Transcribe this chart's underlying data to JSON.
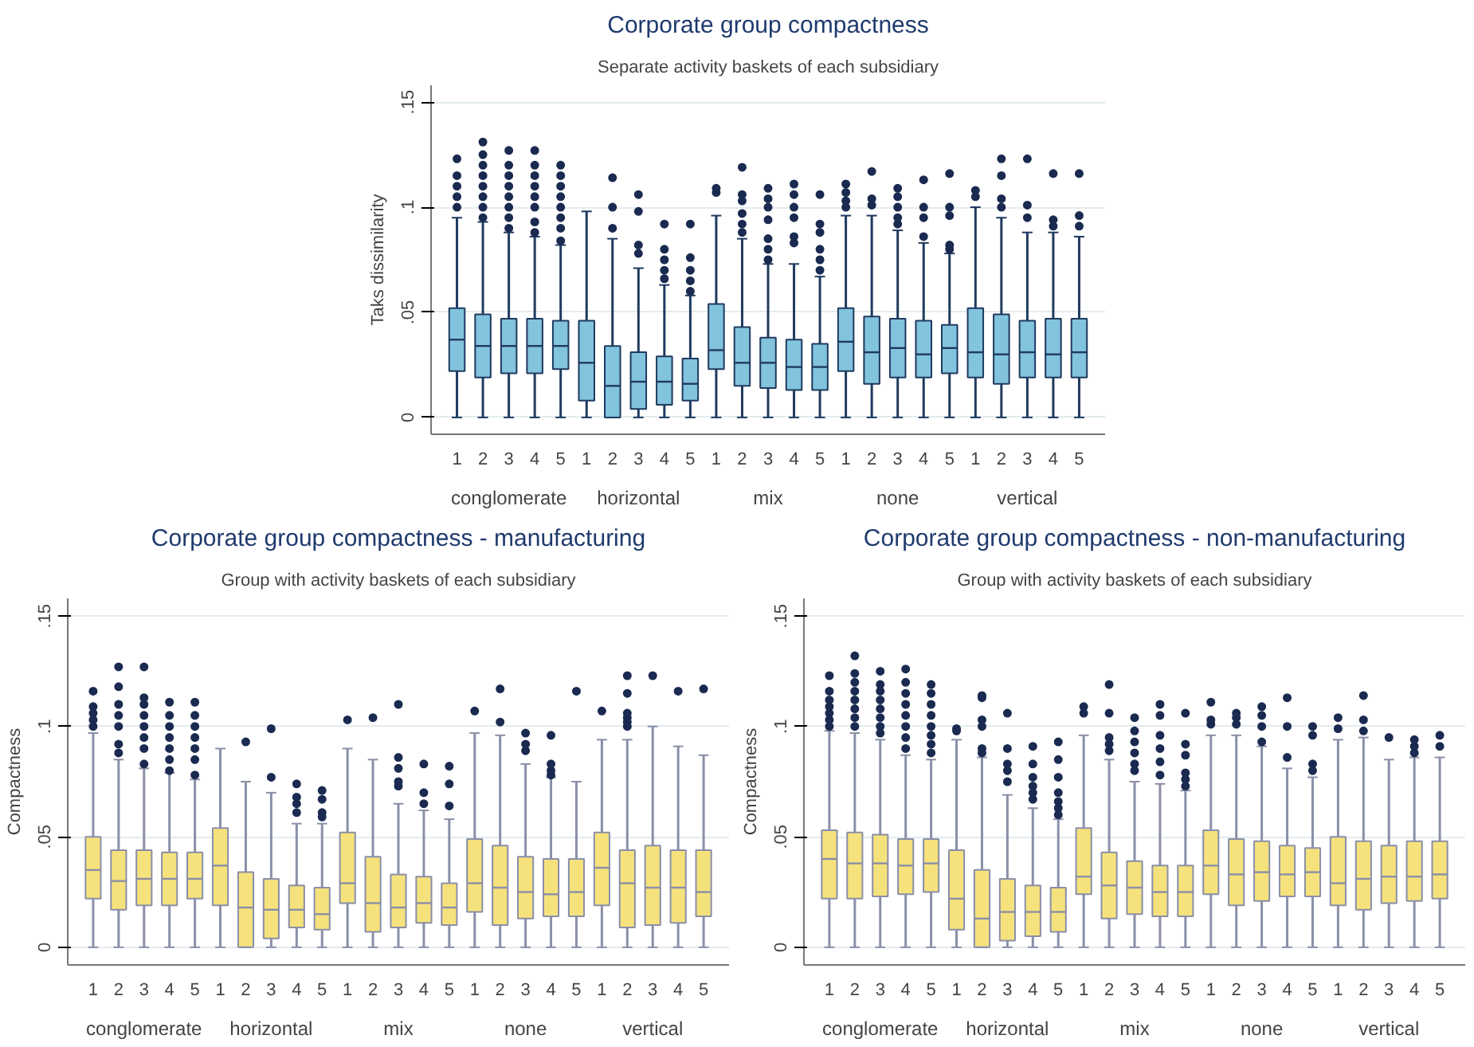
{
  "chart_data": [
    {
      "type": "box",
      "title": "Corporate group compactness",
      "subtitle": "Separate activity baskets of each subsidiary",
      "ylabel": "Taks dissimilarity",
      "categories": [
        "1",
        "2",
        "3",
        "4",
        "5",
        "1",
        "2",
        "3",
        "4",
        "5",
        "1",
        "2",
        "3",
        "4",
        "5",
        "1",
        "2",
        "3",
        "4",
        "5",
        "1",
        "2",
        "3",
        "4",
        "5"
      ],
      "annotations": [
        "conglomerate",
        "horizontal",
        "mix",
        "none",
        "vertical"
      ],
      "ylim": [
        -0.008,
        0.158
      ],
      "yticks": [
        {
          "value": 0,
          "label": "0"
        },
        {
          "value": 0.05,
          "label": ".05"
        },
        {
          "value": 0.1,
          "label": ".1"
        },
        {
          "value": 0.15,
          "label": ".15"
        }
      ],
      "grid": "y",
      "series": [
        {
          "color": "#82c3dd",
          "boxes": [
            {
              "low": 0,
              "q1": 0.022,
              "median": 0.037,
              "q3": 0.052,
              "high": 0.095,
              "outliers": [
                0.1,
                0.105,
                0.11,
                0.115,
                0.123
              ]
            },
            {
              "low": 0,
              "q1": 0.019,
              "median": 0.034,
              "q3": 0.049,
              "high": 0.093,
              "outliers": [
                0.095,
                0.1,
                0.105,
                0.11,
                0.115,
                0.12,
                0.125,
                0.131
              ]
            },
            {
              "low": 0,
              "q1": 0.021,
              "median": 0.034,
              "q3": 0.047,
              "high": 0.088,
              "outliers": [
                0.09,
                0.095,
                0.1,
                0.105,
                0.11,
                0.115,
                0.12,
                0.127
              ]
            },
            {
              "low": 0,
              "q1": 0.021,
              "median": 0.034,
              "q3": 0.047,
              "high": 0.086,
              "outliers": [
                0.088,
                0.093,
                0.1,
                0.105,
                0.11,
                0.115,
                0.12,
                0.127
              ]
            },
            {
              "low": 0,
              "q1": 0.023,
              "median": 0.034,
              "q3": 0.046,
              "high": 0.082,
              "outliers": [
                0.084,
                0.09,
                0.095,
                0.1,
                0.105,
                0.11,
                0.115,
                0.12
              ]
            },
            {
              "low": 0,
              "q1": 0.008,
              "median": 0.026,
              "q3": 0.046,
              "high": 0.098
            },
            {
              "low": 0,
              "q1": 0,
              "median": 0.015,
              "q3": 0.034,
              "high": 0.085,
              "outliers": [
                0.09,
                0.1,
                0.114
              ]
            },
            {
              "low": 0,
              "q1": 0.004,
              "median": 0.017,
              "q3": 0.031,
              "high": 0.071,
              "outliers": [
                0.078,
                0.082,
                0.098,
                0.106
              ]
            },
            {
              "low": 0,
              "q1": 0.006,
              "median": 0.017,
              "q3": 0.029,
              "high": 0.063,
              "outliers": [
                0.066,
                0.07,
                0.075,
                0.08,
                0.092
              ]
            },
            {
              "low": 0,
              "q1": 0.008,
              "median": 0.016,
              "q3": 0.028,
              "high": 0.058,
              "outliers": [
                0.06,
                0.065,
                0.07,
                0.076,
                0.092
              ]
            },
            {
              "low": 0,
              "q1": 0.023,
              "median": 0.032,
              "q3": 0.054,
              "high": 0.096,
              "outliers": [
                0.107,
                0.109
              ]
            },
            {
              "low": 0,
              "q1": 0.015,
              "median": 0.026,
              "q3": 0.043,
              "high": 0.085,
              "outliers": [
                0.088,
                0.092,
                0.097,
                0.103,
                0.106,
                0.119
              ]
            },
            {
              "low": 0,
              "q1": 0.014,
              "median": 0.026,
              "q3": 0.038,
              "high": 0.073,
              "outliers": [
                0.075,
                0.08,
                0.085,
                0.094,
                0.1,
                0.104,
                0.109
              ]
            },
            {
              "low": 0,
              "q1": 0.013,
              "median": 0.024,
              "q3": 0.037,
              "high": 0.073,
              "outliers": [
                0.083,
                0.086,
                0.095,
                0.1,
                0.106,
                0.111
              ]
            },
            {
              "low": 0,
              "q1": 0.013,
              "median": 0.024,
              "q3": 0.035,
              "high": 0.067,
              "outliers": [
                0.07,
                0.075,
                0.08,
                0.088,
                0.092,
                0.106
              ]
            },
            {
              "low": 0,
              "q1": 0.022,
              "median": 0.036,
              "q3": 0.052,
              "high": 0.096,
              "outliers": [
                0.1,
                0.103,
                0.107,
                0.111
              ]
            },
            {
              "low": 0,
              "q1": 0.016,
              "median": 0.031,
              "q3": 0.048,
              "high": 0.096,
              "outliers": [
                0.101,
                0.104,
                0.117
              ]
            },
            {
              "low": 0,
              "q1": 0.019,
              "median": 0.033,
              "q3": 0.047,
              "high": 0.089,
              "outliers": [
                0.092,
                0.095,
                0.1,
                0.105,
                0.109
              ]
            },
            {
              "low": 0,
              "q1": 0.019,
              "median": 0.03,
              "q3": 0.046,
              "high": 0.083,
              "outliers": [
                0.086,
                0.095,
                0.1,
                0.113
              ]
            },
            {
              "low": 0,
              "q1": 0.021,
              "median": 0.033,
              "q3": 0.044,
              "high": 0.078,
              "outliers": [
                0.08,
                0.082,
                0.096,
                0.1,
                0.116
              ]
            },
            {
              "low": 0,
              "q1": 0.019,
              "median": 0.031,
              "q3": 0.052,
              "high": 0.1,
              "outliers": [
                0.105,
                0.108
              ]
            },
            {
              "low": 0,
              "q1": 0.016,
              "median": 0.03,
              "q3": 0.049,
              "high": 0.095,
              "outliers": [
                0.1,
                0.104,
                0.115,
                0.123
              ]
            },
            {
              "low": 0,
              "q1": 0.019,
              "median": 0.031,
              "q3": 0.046,
              "high": 0.088,
              "outliers": [
                0.095,
                0.101,
                0.123
              ]
            },
            {
              "low": 0,
              "q1": 0.019,
              "median": 0.03,
              "q3": 0.047,
              "high": 0.088,
              "outliers": [
                0.091,
                0.094,
                0.116
              ]
            },
            {
              "low": 0,
              "q1": 0.019,
              "median": 0.031,
              "q3": 0.047,
              "high": 0.086,
              "outliers": [
                0.091,
                0.096,
                0.116
              ]
            }
          ]
        }
      ]
    },
    {
      "type": "box",
      "title": "Corporate group compactness - manufacturing",
      "subtitle": "Group with activity baskets of each subsidiary",
      "ylabel": "Compactness",
      "categories": [
        "1",
        "2",
        "3",
        "4",
        "5",
        "1",
        "2",
        "3",
        "4",
        "5",
        "1",
        "2",
        "3",
        "4",
        "5",
        "1",
        "2",
        "3",
        "4",
        "5",
        "1",
        "2",
        "3",
        "4",
        "5"
      ],
      "annotations": [
        "conglomerate",
        "horizontal",
        "mix",
        "none",
        "vertical"
      ],
      "ylim": [
        -0.008,
        0.158
      ],
      "yticks": [
        {
          "value": 0,
          "label": "0"
        },
        {
          "value": 0.05,
          "label": ".05"
        },
        {
          "value": 0.1,
          "label": ".1"
        },
        {
          "value": 0.15,
          "label": ".15"
        }
      ],
      "grid": "y",
      "series": [
        {
          "color": "#f6e27c",
          "boxes": [
            {
              "low": 0,
              "q1": 0.022,
              "median": 0.035,
              "q3": 0.05,
              "high": 0.097,
              "outliers": [
                0.1,
                0.103,
                0.106,
                0.109,
                0.116
              ]
            },
            {
              "low": 0,
              "q1": 0.017,
              "median": 0.03,
              "q3": 0.044,
              "high": 0.085,
              "outliers": [
                0.088,
                0.092,
                0.1,
                0.105,
                0.11,
                0.118,
                0.127
              ]
            },
            {
              "low": 0,
              "q1": 0.019,
              "median": 0.031,
              "q3": 0.044,
              "high": 0.081,
              "outliers": [
                0.083,
                0.09,
                0.095,
                0.1,
                0.105,
                0.11,
                0.113,
                0.127
              ]
            },
            {
              "low": 0,
              "q1": 0.019,
              "median": 0.031,
              "q3": 0.043,
              "high": 0.079,
              "outliers": [
                0.08,
                0.085,
                0.09,
                0.095,
                0.1,
                0.105,
                0.111
              ]
            },
            {
              "low": 0,
              "q1": 0.022,
              "median": 0.031,
              "q3": 0.043,
              "high": 0.076,
              "outliers": [
                0.078,
                0.085,
                0.09,
                0.095,
                0.1,
                0.105,
                0.111
              ]
            },
            {
              "low": 0,
              "q1": 0.019,
              "median": 0.037,
              "q3": 0.054,
              "high": 0.09
            },
            {
              "low": 0,
              "q1": 0,
              "median": 0.018,
              "q3": 0.034,
              "high": 0.075,
              "outliers": [
                0.093
              ]
            },
            {
              "low": 0,
              "q1": 0.004,
              "median": 0.017,
              "q3": 0.031,
              "high": 0.07,
              "outliers": [
                0.077,
                0.099
              ]
            },
            {
              "low": 0,
              "q1": 0.009,
              "median": 0.017,
              "q3": 0.028,
              "high": 0.056,
              "outliers": [
                0.061,
                0.065,
                0.068,
                0.074
              ]
            },
            {
              "low": 0,
              "q1": 0.008,
              "median": 0.015,
              "q3": 0.027,
              "high": 0.056,
              "outliers": [
                0.059,
                0.061,
                0.067,
                0.071
              ]
            },
            {
              "low": 0,
              "q1": 0.02,
              "median": 0.029,
              "q3": 0.052,
              "high": 0.09,
              "outliers": [
                0.103
              ]
            },
            {
              "low": 0,
              "q1": 0.007,
              "median": 0.02,
              "q3": 0.041,
              "high": 0.085,
              "outliers": [
                0.104
              ]
            },
            {
              "low": 0,
              "q1": 0.009,
              "median": 0.018,
              "q3": 0.033,
              "high": 0.065,
              "outliers": [
                0.073,
                0.075,
                0.081,
                0.086,
                0.11
              ]
            },
            {
              "low": 0,
              "q1": 0.011,
              "median": 0.02,
              "q3": 0.032,
              "high": 0.062,
              "outliers": [
                0.065,
                0.07,
                0.083
              ]
            },
            {
              "low": 0,
              "q1": 0.01,
              "median": 0.018,
              "q3": 0.029,
              "high": 0.058,
              "outliers": [
                0.064,
                0.074,
                0.082
              ]
            },
            {
              "low": 0,
              "q1": 0.016,
              "median": 0.029,
              "q3": 0.049,
              "high": 0.097,
              "outliers": [
                0.107
              ]
            },
            {
              "low": 0,
              "q1": 0.01,
              "median": 0.027,
              "q3": 0.046,
              "high": 0.096,
              "outliers": [
                0.102,
                0.117
              ]
            },
            {
              "low": 0,
              "q1": 0.013,
              "median": 0.025,
              "q3": 0.041,
              "high": 0.083,
              "outliers": [
                0.089,
                0.092,
                0.097
              ]
            },
            {
              "low": 0,
              "q1": 0.014,
              "median": 0.024,
              "q3": 0.04,
              "high": 0.077,
              "outliers": [
                0.078,
                0.08,
                0.083,
                0.096
              ]
            },
            {
              "low": 0,
              "q1": 0.014,
              "median": 0.025,
              "q3": 0.04,
              "high": 0.075,
              "outliers": [
                0.116
              ]
            },
            {
              "low": 0,
              "q1": 0.019,
              "median": 0.036,
              "q3": 0.052,
              "high": 0.094,
              "outliers": [
                0.107
              ]
            },
            {
              "low": 0,
              "q1": 0.009,
              "median": 0.029,
              "q3": 0.044,
              "high": 0.094,
              "outliers": [
                0.1,
                0.102,
                0.104,
                0.106,
                0.115,
                0.123
              ]
            },
            {
              "low": 0,
              "q1": 0.01,
              "median": 0.027,
              "q3": 0.046,
              "high": 0.1,
              "outliers": [
                0.123
              ]
            },
            {
              "low": 0,
              "q1": 0.011,
              "median": 0.027,
              "q3": 0.044,
              "high": 0.091,
              "outliers": [
                0.116
              ]
            },
            {
              "low": 0,
              "q1": 0.014,
              "median": 0.025,
              "q3": 0.044,
              "high": 0.087,
              "outliers": [
                0.117
              ]
            }
          ]
        }
      ]
    },
    {
      "type": "box",
      "title": "Corporate group compactness - non-manufacturing",
      "subtitle": "Group with activity baskets of each subsidiary",
      "ylabel": "Compactness",
      "categories": [
        "1",
        "2",
        "3",
        "4",
        "5",
        "1",
        "2",
        "3",
        "4",
        "5",
        "1",
        "2",
        "3",
        "4",
        "5",
        "1",
        "2",
        "3",
        "4",
        "5",
        "1",
        "2",
        "3",
        "4",
        "5"
      ],
      "annotations": [
        "conglomerate",
        "horizontal",
        "mix",
        "none",
        "vertical"
      ],
      "ylim": [
        -0.008,
        0.158
      ],
      "yticks": [
        {
          "value": 0,
          "label": "0"
        },
        {
          "value": 0.05,
          "label": ".05"
        },
        {
          "value": 0.1,
          "label": ".1"
        },
        {
          "value": 0.15,
          "label": ".15"
        }
      ],
      "grid": "y",
      "series": [
        {
          "color": "#f6e27c",
          "boxes": [
            {
              "low": 0,
              "q1": 0.022,
              "median": 0.04,
              "q3": 0.053,
              "high": 0.098,
              "outliers": [
                0.1,
                0.103,
                0.106,
                0.109,
                0.112,
                0.116,
                0.123
              ]
            },
            {
              "low": 0,
              "q1": 0.022,
              "median": 0.038,
              "q3": 0.052,
              "high": 0.097,
              "outliers": [
                0.1,
                0.104,
                0.108,
                0.112,
                0.116,
                0.12,
                0.124,
                0.132
              ]
            },
            {
              "low": 0,
              "q1": 0.023,
              "median": 0.038,
              "q3": 0.051,
              "high": 0.094,
              "outliers": [
                0.097,
                0.1,
                0.104,
                0.108,
                0.112,
                0.116,
                0.119,
                0.125
              ]
            },
            {
              "low": 0,
              "q1": 0.024,
              "median": 0.037,
              "q3": 0.049,
              "high": 0.087,
              "outliers": [
                0.09,
                0.095,
                0.1,
                0.105,
                0.11,
                0.115,
                0.12,
                0.126
              ]
            },
            {
              "low": 0,
              "q1": 0.025,
              "median": 0.038,
              "q3": 0.049,
              "high": 0.085,
              "outliers": [
                0.088,
                0.092,
                0.096,
                0.1,
                0.105,
                0.11,
                0.115,
                0.119
              ]
            },
            {
              "low": 0,
              "q1": 0.008,
              "median": 0.022,
              "q3": 0.044,
              "high": 0.094,
              "outliers": [
                0.098,
                0.099
              ]
            },
            {
              "low": 0,
              "q1": 0,
              "median": 0.013,
              "q3": 0.035,
              "high": 0.086,
              "outliers": [
                0.088,
                0.09,
                0.1,
                0.103,
                0.113,
                0.114
              ]
            },
            {
              "low": 0,
              "q1": 0.003,
              "median": 0.016,
              "q3": 0.031,
              "high": 0.069,
              "outliers": [
                0.075,
                0.08,
                0.083,
                0.09,
                0.106
              ]
            },
            {
              "low": 0,
              "q1": 0.005,
              "median": 0.016,
              "q3": 0.028,
              "high": 0.063,
              "outliers": [
                0.067,
                0.07,
                0.073,
                0.077,
                0.083,
                0.091
              ]
            },
            {
              "low": 0,
              "q1": 0.007,
              "median": 0.016,
              "q3": 0.027,
              "high": 0.058,
              "outliers": [
                0.06,
                0.063,
                0.066,
                0.07,
                0.077,
                0.085,
                0.093
              ]
            },
            {
              "low": 0,
              "q1": 0.024,
              "median": 0.032,
              "q3": 0.054,
              "high": 0.096,
              "outliers": [
                0.106,
                0.109
              ]
            },
            {
              "low": 0,
              "q1": 0.013,
              "median": 0.028,
              "q3": 0.043,
              "high": 0.085,
              "outliers": [
                0.089,
                0.092,
                0.095,
                0.106,
                0.119
              ]
            },
            {
              "low": 0,
              "q1": 0.015,
              "median": 0.027,
              "q3": 0.039,
              "high": 0.075,
              "outliers": [
                0.08,
                0.083,
                0.088,
                0.093,
                0.098,
                0.104
              ]
            },
            {
              "low": 0,
              "q1": 0.014,
              "median": 0.025,
              "q3": 0.037,
              "high": 0.074,
              "outliers": [
                0.078,
                0.084,
                0.09,
                0.096,
                0.105,
                0.11
              ]
            },
            {
              "low": 0,
              "q1": 0.014,
              "median": 0.025,
              "q3": 0.037,
              "high": 0.071,
              "outliers": [
                0.073,
                0.076,
                0.079,
                0.087,
                0.092,
                0.106
              ]
            },
            {
              "low": 0,
              "q1": 0.024,
              "median": 0.037,
              "q3": 0.053,
              "high": 0.096,
              "outliers": [
                0.101,
                0.103,
                0.111
              ]
            },
            {
              "low": 0,
              "q1": 0.019,
              "median": 0.033,
              "q3": 0.049,
              "high": 0.096,
              "outliers": [
                0.101,
                0.104,
                0.106
              ]
            },
            {
              "low": 0,
              "q1": 0.021,
              "median": 0.034,
              "q3": 0.048,
              "high": 0.091,
              "outliers": [
                0.093,
                0.1,
                0.105,
                0.109
              ]
            },
            {
              "low": 0,
              "q1": 0.023,
              "median": 0.033,
              "q3": 0.046,
              "high": 0.081,
              "outliers": [
                0.086,
                0.1,
                0.113
              ]
            },
            {
              "low": 0,
              "q1": 0.023,
              "median": 0.034,
              "q3": 0.045,
              "high": 0.077,
              "outliers": [
                0.08,
                0.083,
                0.096,
                0.1
              ]
            },
            {
              "low": 0,
              "q1": 0.019,
              "median": 0.029,
              "q3": 0.05,
              "high": 0.094,
              "outliers": [
                0.099,
                0.104
              ]
            },
            {
              "low": 0,
              "q1": 0.017,
              "median": 0.031,
              "q3": 0.048,
              "high": 0.095,
              "outliers": [
                0.098,
                0.103,
                0.114
              ]
            },
            {
              "low": 0,
              "q1": 0.02,
              "median": 0.032,
              "q3": 0.046,
              "high": 0.085,
              "outliers": [
                0.095
              ]
            },
            {
              "low": 0,
              "q1": 0.021,
              "median": 0.032,
              "q3": 0.048,
              "high": 0.086,
              "outliers": [
                0.088,
                0.091,
                0.094
              ]
            },
            {
              "low": 0,
              "q1": 0.022,
              "median": 0.033,
              "q3": 0.048,
              "high": 0.086,
              "outliers": [
                0.091,
                0.096
              ]
            }
          ]
        }
      ]
    }
  ]
}
